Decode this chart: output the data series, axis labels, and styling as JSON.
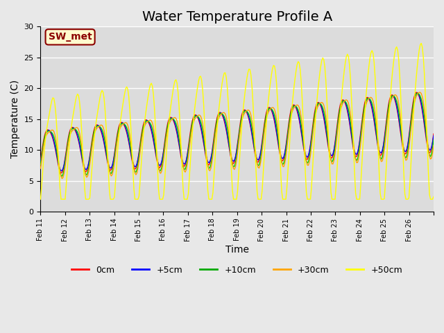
{
  "title": "Water Temperature Profile A",
  "xlabel": "Time",
  "ylabel": "Temperature (C)",
  "annotation": "SW_met",
  "annotation_color": "#8B0000",
  "annotation_bg": "#FFFACD",
  "annotation_border": "#8B0000",
  "legend_labels": [
    "0cm",
    "+5cm",
    "+10cm",
    "+30cm",
    "+50cm"
  ],
  "legend_colors": [
    "#FF0000",
    "#0000FF",
    "#00AA00",
    "#FFA500",
    "#FFFF00"
  ],
  "line_colors": [
    "#FF0000",
    "#0000FF",
    "#00CC00",
    "#FFA500",
    "#FFFF00"
  ],
  "ylim": [
    0,
    30
  ],
  "yticks": [
    0,
    5,
    10,
    15,
    20,
    25,
    30
  ],
  "xtick_labels": [
    "Feb 11",
    "Feb 12",
    "Feb 13",
    "Feb 14",
    "Feb 15",
    "Feb 16",
    "Feb 17",
    "Feb 18",
    "Feb 19",
    "Feb 20",
    "Feb 21",
    "Feb 22",
    "Feb 23",
    "Feb 24",
    "Feb 25",
    "Feb 26"
  ],
  "n_days": 16,
  "bg_color": "#E8E8E8",
  "plot_bg": "#DCDCDC",
  "grid_color": "#FFFFFF",
  "title_fontsize": 14,
  "label_fontsize": 10,
  "tick_fontsize": 8
}
